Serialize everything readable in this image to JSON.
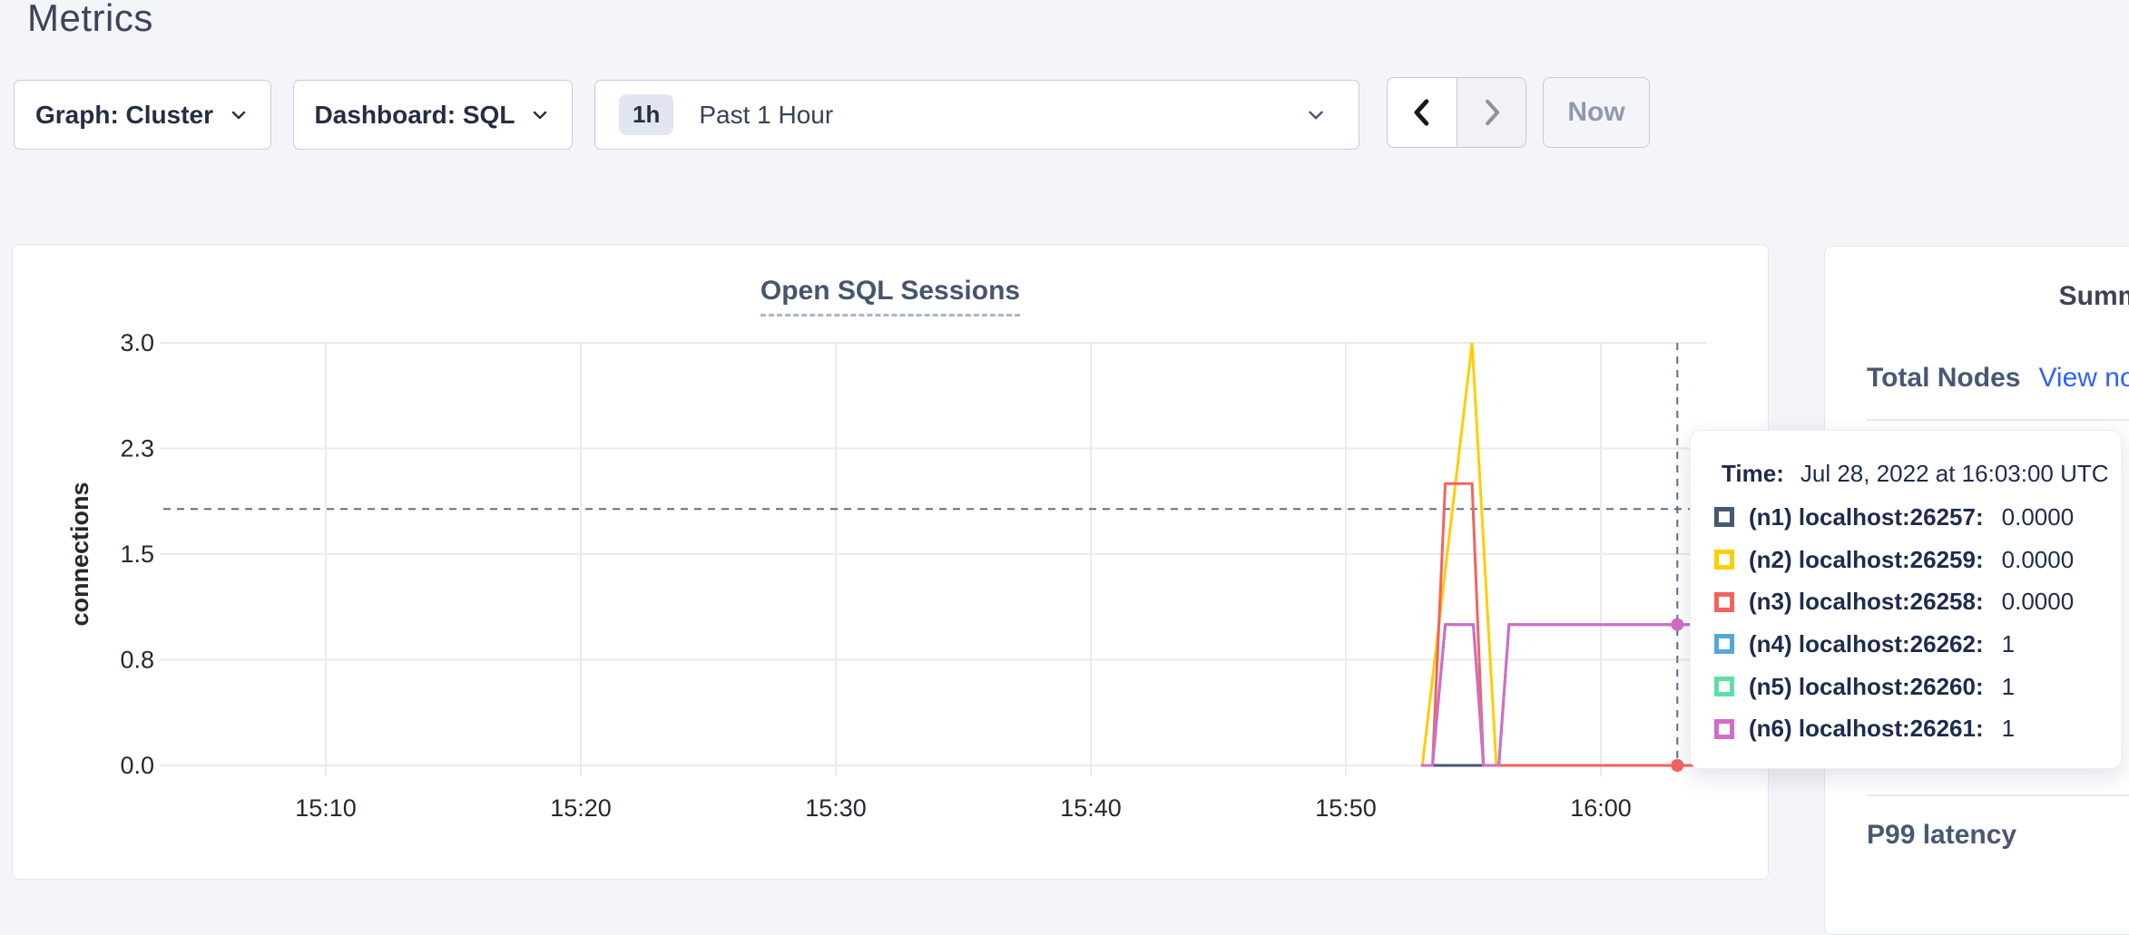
{
  "page": {
    "title": "Metrics"
  },
  "toolbar": {
    "graph_label": "Graph: Cluster",
    "dashboard_label": "Dashboard: SQL",
    "time_badge": "1h",
    "time_label": "Past 1 Hour",
    "now_label": "Now"
  },
  "chart_data": {
    "type": "line",
    "title": "Open SQL Sessions",
    "ylabel": "connections",
    "y_axis": {
      "range": [
        0,
        3
      ],
      "ticks": [
        {
          "label": "0.0",
          "v": 0
        },
        {
          "label": "0.8",
          "v": 0.75
        },
        {
          "label": "1.5",
          "v": 1.5
        },
        {
          "label": "2.3",
          "v": 2.25
        },
        {
          "label": "3.0",
          "v": 3
        }
      ]
    },
    "x_axis": {
      "unit": "time of day (UTC), minutes after 15:00",
      "visible_range_minutes": [
        4,
        64.2
      ],
      "ticks": [
        {
          "label": "15:10",
          "t": 10
        },
        {
          "label": "15:20",
          "t": 20
        },
        {
          "label": "15:30",
          "t": 30
        },
        {
          "label": "15:40",
          "t": 40
        },
        {
          "label": "15:50",
          "t": 50
        },
        {
          "label": "16:00",
          "t": 60
        }
      ]
    },
    "series": [
      {
        "name": "(n1) localhost:26257",
        "color": "#475872",
        "points": [
          [
            53.0,
            0
          ],
          [
            64.2,
            0
          ]
        ]
      },
      {
        "name": "(n2) localhost:26259",
        "color": "#ffcd00",
        "points": [
          [
            53.0,
            0
          ],
          [
            54.95,
            3
          ],
          [
            55.9,
            0
          ],
          [
            64.2,
            0
          ]
        ]
      },
      {
        "name": "(n3) localhost:26258",
        "color": "#f2635f",
        "points": [
          [
            53.4,
            0
          ],
          [
            53.9,
            2
          ],
          [
            54.95,
            2
          ],
          [
            55.4,
            0
          ],
          [
            64.2,
            0
          ]
        ]
      },
      {
        "name": "(n4) localhost:26262",
        "color": "#55a6dd",
        "points": [
          [
            52.95,
            0
          ],
          [
            53.4,
            0
          ],
          [
            53.9,
            1
          ],
          [
            55.0,
            1
          ],
          [
            55.4,
            0
          ],
          [
            56.0,
            0
          ],
          [
            56.4,
            1
          ],
          [
            64.2,
            1
          ]
        ]
      },
      {
        "name": "(n5) localhost:26260",
        "color": "#5ce0a5",
        "points": [
          [
            52.95,
            0
          ],
          [
            53.4,
            0
          ],
          [
            53.9,
            1
          ],
          [
            55.0,
            1
          ],
          [
            55.4,
            0
          ],
          [
            56.0,
            0
          ],
          [
            56.4,
            1
          ],
          [
            64.2,
            1
          ]
        ]
      },
      {
        "name": "(n6) localhost:26261",
        "color": "#d36bc8",
        "points": [
          [
            52.95,
            0
          ],
          [
            53.4,
            0
          ],
          [
            53.9,
            1
          ],
          [
            55.0,
            1
          ],
          [
            55.4,
            0
          ],
          [
            56.0,
            0
          ],
          [
            56.4,
            1
          ],
          [
            64.2,
            1
          ]
        ]
      }
    ],
    "hover": {
      "t": 63,
      "guide_value": 1.82,
      "time": "Jul 28, 2022 at 16:03:00 UTC",
      "dots": [
        {
          "series": "(n3) localhost:26258",
          "v": 0,
          "color": "#f2635f"
        },
        {
          "series": "(n6) localhost:26261",
          "v": 1,
          "color": "#d36bc8"
        }
      ]
    },
    "grid": true,
    "legend_position": "tooltip"
  },
  "tooltip": {
    "time_label": "Time:",
    "time_value": "Jul 28, 2022 at 16:03:00 UTC",
    "rows": [
      {
        "color": "#475872",
        "label": "(n1) localhost:26257:",
        "value": "0.0000"
      },
      {
        "color": "#ffcd00",
        "label": "(n2) localhost:26259:",
        "value": "0.0000"
      },
      {
        "color": "#f2635f",
        "label": "(n3) localhost:26258:",
        "value": "0.0000"
      },
      {
        "color": "#55a6dd",
        "label": "(n4) localhost:26262:",
        "value": "1"
      },
      {
        "color": "#5ce0a5",
        "label": "(n5) localhost:26260:",
        "value": "1"
      },
      {
        "color": "#d36bc8",
        "label": "(n6) localhost:26261:",
        "value": "1"
      }
    ]
  },
  "sidebar": {
    "title": "Summary",
    "total_nodes_label": "Total Nodes",
    "view_nodes_label": "View nodes",
    "p99_label": "P99 latency"
  },
  "colors": {
    "page_bg": "#f4f5f9",
    "link_blue": "#2f62ff",
    "crosshair": "#5b7083",
    "gridline": "#e9eaec"
  }
}
